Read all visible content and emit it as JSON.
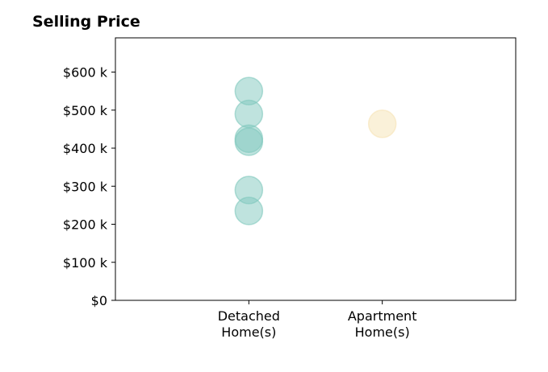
{
  "chart_data": {
    "type": "scatter",
    "title": "Selling Price",
    "xlabel": "",
    "ylabel": "",
    "categories": [
      "Detached\nHome(s)",
      "Apartment\nHome(s)"
    ],
    "y_tick_values": [
      0,
      100,
      200,
      300,
      400,
      500,
      600
    ],
    "y_tick_labels": [
      "$0",
      "$100 k",
      "$200 k",
      "$300 k",
      "$400 k",
      "$500 k",
      "$600 k"
    ],
    "ylim": [
      0,
      690
    ],
    "xlim": [
      0,
      3
    ],
    "grid": false,
    "series": [
      {
        "category_index": 0,
        "color": "#7fc8bd",
        "values": [
          550,
          490,
          425,
          417,
          290,
          235
        ]
      },
      {
        "category_index": 1,
        "color": "#f6e3b4",
        "values": [
          464
        ]
      }
    ]
  }
}
